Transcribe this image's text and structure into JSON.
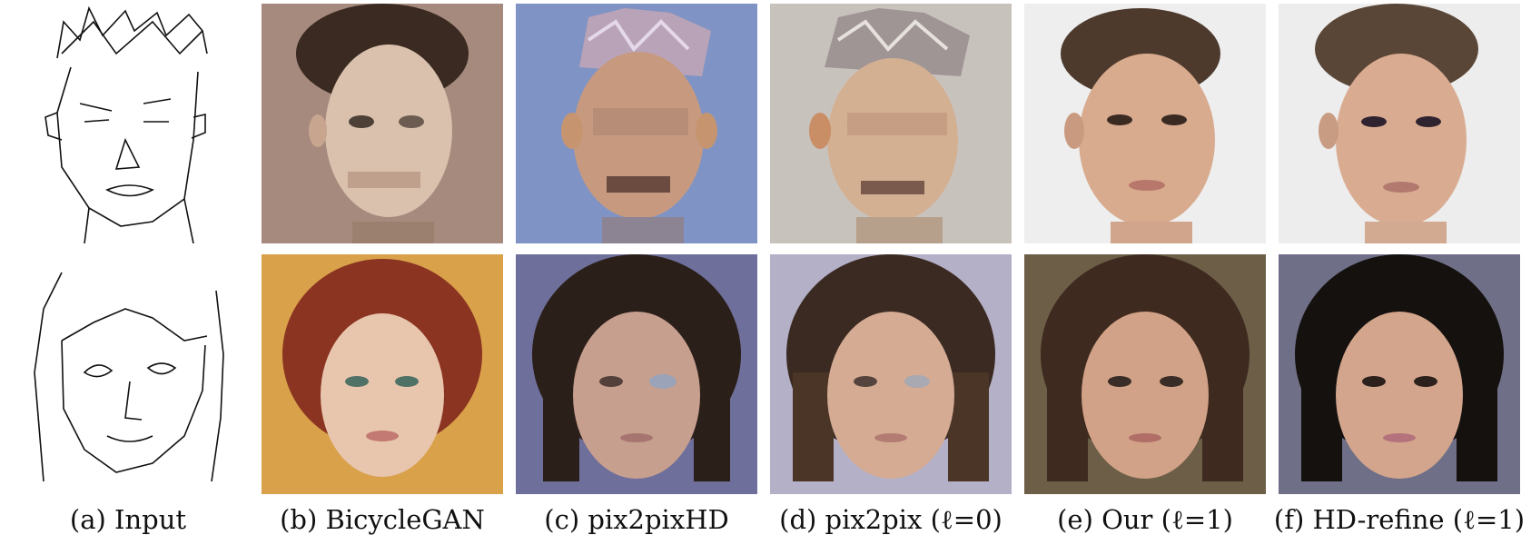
{
  "figure": {
    "captions": [
      "(a) Input",
      "(b) BicycleGAN",
      "(c) pix2pixHD",
      "(d) pix2pix (ℓ=0)",
      "(e) Our (ℓ=1)",
      "(f) HD-refine (ℓ=1)"
    ],
    "colors": {
      "bicyclegan_bg_row1": "#a58a7d",
      "bicyclegan_bg_row2": "#d9a14a",
      "pix2pixhd_bg_row1": "#7f93c4",
      "pix2pixhd_bg_row2": "#6e6f9a",
      "pix2pix_bg_row1": "#c8c2bd",
      "pix2pix_bg_row2": "#b4b0c7",
      "our_bg_row1": "#eeeeee",
      "our_bg_row2": "#6c5e47",
      "hdrefine_bg_row1": "#ededed",
      "hdrefine_bg_row2": "#6f6f88",
      "skin": "#d8ab8e",
      "hair_dark": "#2b1f1a",
      "hair_brown": "#4e3a2d",
      "hair_red": "#8a3421"
    }
  }
}
